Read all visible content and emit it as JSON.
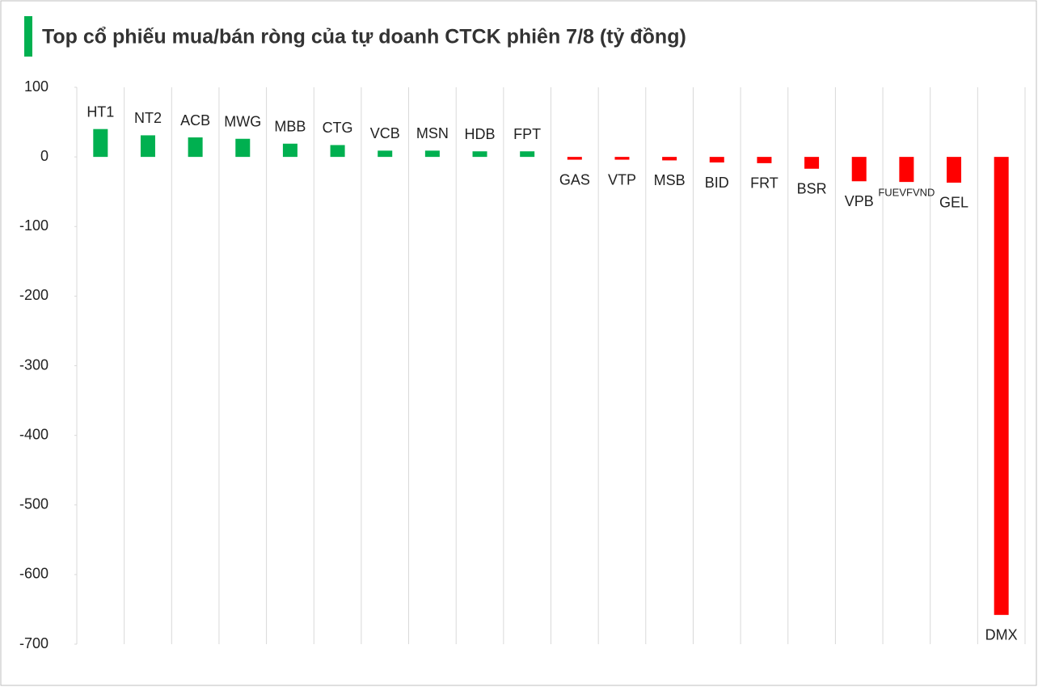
{
  "chart_data": {
    "type": "bar",
    "title": "Top cổ phiếu mua/bán ròng của tự doanh CTCK phiên 7/8 (tỷ đồng)",
    "categories": [
      "HT1",
      "NT2",
      "ACB",
      "MWG",
      "MBB",
      "CTG",
      "VCB",
      "MSN",
      "HDB",
      "FPT",
      "GAS",
      "VTP",
      "MSB",
      "BID",
      "FRT",
      "BSR",
      "VPB",
      "FUEVFVND",
      "GEL",
      "DMX"
    ],
    "values": [
      40,
      31,
      28,
      26,
      19,
      17,
      9,
      9,
      8,
      8,
      -4,
      -4,
      -5,
      -8,
      -9,
      -17,
      -35,
      -36,
      -37,
      -658
    ],
    "color_positive": "#00b050",
    "color_negative": "#ff0000",
    "ylim": [
      -700,
      100
    ],
    "yticks": [
      100,
      0,
      -100,
      -200,
      -300,
      -400,
      -500,
      -600,
      -700
    ]
  }
}
